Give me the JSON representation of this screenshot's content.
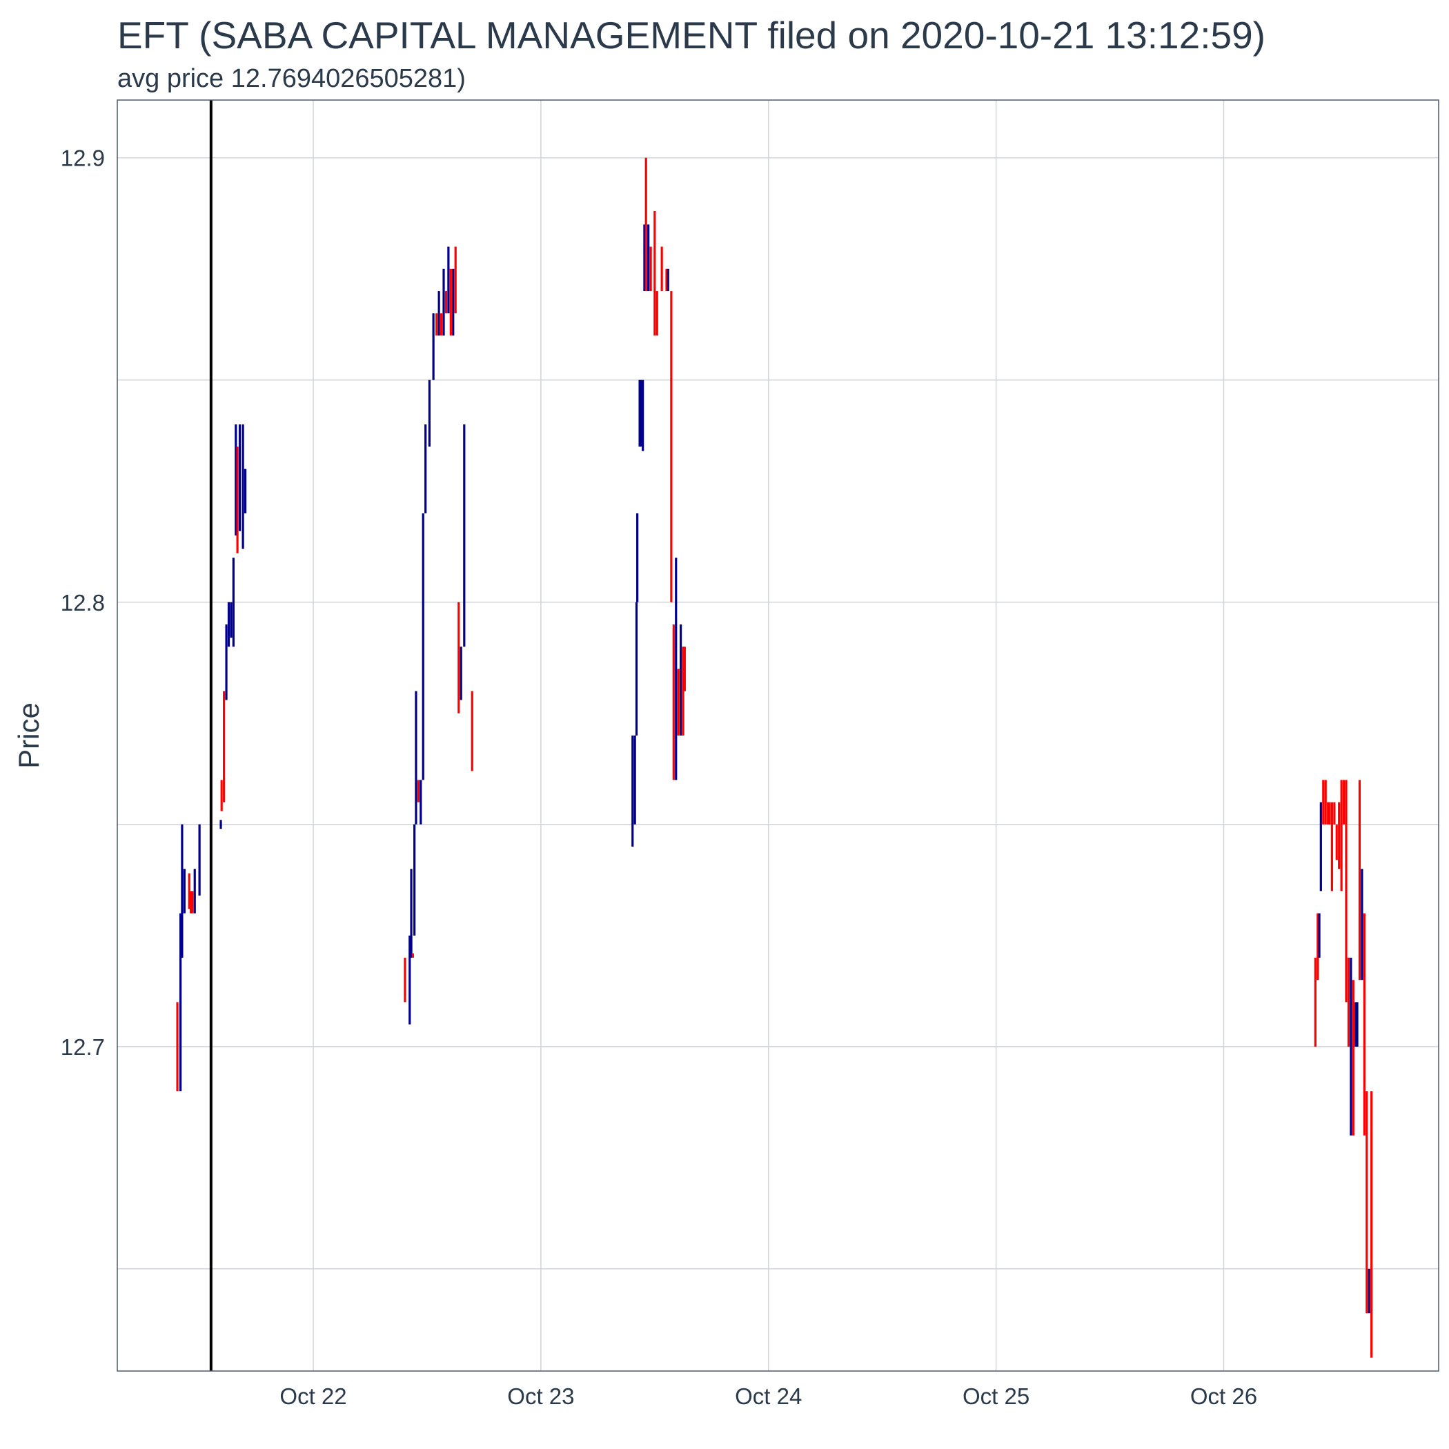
{
  "chart_data": {
    "type": "ohlc",
    "title": "EFT (SABA CAPITAL MANAGEMENT filed on 2020-10-21 13:12:59)",
    "subtitle": "avg price 12.7694026505281)",
    "xlabel": "",
    "ylabel": "Price",
    "x_ticks": [
      {
        "label": "Oct 22",
        "value": "2020-10-22"
      },
      {
        "label": "Oct 23",
        "value": "2020-10-23"
      },
      {
        "label": "Oct 24",
        "value": "2020-10-24"
      },
      {
        "label": "Oct 25",
        "value": "2020-10-25"
      },
      {
        "label": "Oct 26",
        "value": "2020-10-26"
      }
    ],
    "xlim": [
      "2020-10-21 03:20",
      "2020-10-26 22:40"
    ],
    "y_ticks": [
      12.7,
      12.8,
      12.9
    ],
    "y_minor_ticks": [
      12.65,
      12.75,
      12.85
    ],
    "ylim": [
      12.627,
      12.913
    ],
    "grid": true,
    "up_color": "#00008b",
    "down_color": "#ff0000",
    "marker": {
      "time": "2020-10-21 13:12:59",
      "color": "#000000"
    },
    "bars": [
      {
        "t": "2020-10-21 09:40",
        "low": 12.69,
        "high": 12.71,
        "dir": "down"
      },
      {
        "t": "2020-10-21 10:00",
        "low": 12.69,
        "high": 12.73,
        "dir": "up"
      },
      {
        "t": "2020-10-21 10:10",
        "low": 12.72,
        "high": 12.75,
        "dir": "up"
      },
      {
        "t": "2020-10-21 10:25",
        "low": 12.73,
        "high": 12.74,
        "dir": "up"
      },
      {
        "t": "2020-10-21 10:55",
        "low": 12.731,
        "high": 12.739,
        "dir": "down"
      },
      {
        "t": "2020-10-21 11:05",
        "low": 12.73,
        "high": 12.735,
        "dir": "down"
      },
      {
        "t": "2020-10-21 11:15",
        "low": 12.73,
        "high": 12.735,
        "dir": "down"
      },
      {
        "t": "2020-10-21 11:30",
        "low": 12.73,
        "high": 12.74,
        "dir": "up"
      },
      {
        "t": "2020-10-21 12:00",
        "low": 12.734,
        "high": 12.75,
        "dir": "up"
      },
      {
        "t": "2020-10-21 14:15",
        "low": 12.749,
        "high": 12.751,
        "dir": "up"
      },
      {
        "t": "2020-10-21 14:20",
        "low": 12.753,
        "high": 12.76,
        "dir": "down"
      },
      {
        "t": "2020-10-21 14:35",
        "low": 12.755,
        "high": 12.78,
        "dir": "down"
      },
      {
        "t": "2020-10-21 14:50",
        "low": 12.778,
        "high": 12.795,
        "dir": "up"
      },
      {
        "t": "2020-10-21 15:05",
        "low": 12.79,
        "high": 12.8,
        "dir": "up"
      },
      {
        "t": "2020-10-21 15:20",
        "low": 12.792,
        "high": 12.8,
        "dir": "up"
      },
      {
        "t": "2020-10-21 15:35",
        "low": 12.79,
        "high": 12.81,
        "dir": "up"
      },
      {
        "t": "2020-10-21 15:50",
        "low": 12.815,
        "high": 12.84,
        "dir": "up"
      },
      {
        "t": "2020-10-21 16:00",
        "low": 12.811,
        "high": 12.835,
        "dir": "down"
      },
      {
        "t": "2020-10-21 16:15",
        "low": 12.816,
        "high": 12.84,
        "dir": "up"
      },
      {
        "t": "2020-10-21 16:35",
        "low": 12.812,
        "high": 12.84,
        "dir": "up"
      },
      {
        "t": "2020-10-21 16:50",
        "low": 12.82,
        "high": 12.83,
        "dir": "up"
      },
      {
        "t": "2020-10-22 09:40",
        "low": 12.71,
        "high": 12.72,
        "dir": "down"
      },
      {
        "t": "2020-10-22 10:10",
        "low": 12.705,
        "high": 12.725,
        "dir": "up"
      },
      {
        "t": "2020-10-22 10:20",
        "low": 12.72,
        "high": 12.74,
        "dir": "up"
      },
      {
        "t": "2020-10-22 10:30",
        "low": 12.72,
        "high": 12.721,
        "dir": "down"
      },
      {
        "t": "2020-10-22 10:40",
        "low": 12.725,
        "high": 12.75,
        "dir": "up"
      },
      {
        "t": "2020-10-22 10:50",
        "low": 12.75,
        "high": 12.78,
        "dir": "up"
      },
      {
        "t": "2020-10-22 11:05",
        "low": 12.755,
        "high": 12.76,
        "dir": "down"
      },
      {
        "t": "2020-10-22 11:20",
        "low": 12.75,
        "high": 12.76,
        "dir": "up"
      },
      {
        "t": "2020-10-22 11:35",
        "low": 12.76,
        "high": 12.82,
        "dir": "up"
      },
      {
        "t": "2020-10-22 11:50",
        "low": 12.82,
        "high": 12.84,
        "dir": "up"
      },
      {
        "t": "2020-10-22 12:15",
        "low": 12.835,
        "high": 12.85,
        "dir": "up"
      },
      {
        "t": "2020-10-22 12:40",
        "low": 12.85,
        "high": 12.865,
        "dir": "up"
      },
      {
        "t": "2020-10-22 13:00",
        "low": 12.86,
        "high": 12.865,
        "dir": "down"
      },
      {
        "t": "2020-10-22 13:15",
        "low": 12.86,
        "high": 12.87,
        "dir": "up"
      },
      {
        "t": "2020-10-22 13:30",
        "low": 12.86,
        "high": 12.865,
        "dir": "down"
      },
      {
        "t": "2020-10-22 13:45",
        "low": 12.86,
        "high": 12.875,
        "dir": "up"
      },
      {
        "t": "2020-10-22 14:00",
        "low": 12.865,
        "high": 12.87,
        "dir": "down"
      },
      {
        "t": "2020-10-22 14:15",
        "low": 12.865,
        "high": 12.88,
        "dir": "up"
      },
      {
        "t": "2020-10-22 14:30",
        "low": 12.86,
        "high": 12.875,
        "dir": "down"
      },
      {
        "t": "2020-10-22 14:45",
        "low": 12.86,
        "high": 12.875,
        "dir": "up"
      },
      {
        "t": "2020-10-22 15:00",
        "low": 12.865,
        "high": 12.88,
        "dir": "down"
      },
      {
        "t": "2020-10-22 15:20",
        "low": 12.775,
        "high": 12.8,
        "dir": "down"
      },
      {
        "t": "2020-10-22 15:35",
        "low": 12.778,
        "high": 12.79,
        "dir": "up"
      },
      {
        "t": "2020-10-22 15:55",
        "low": 12.79,
        "high": 12.84,
        "dir": "up"
      },
      {
        "t": "2020-10-22 16:45",
        "low": 12.762,
        "high": 12.78,
        "dir": "down"
      },
      {
        "t": "2020-10-23 09:40",
        "low": 12.745,
        "high": 12.77,
        "dir": "up"
      },
      {
        "t": "2020-10-23 09:55",
        "low": 12.75,
        "high": 12.77,
        "dir": "up"
      },
      {
        "t": "2020-10-23 10:05",
        "low": 12.77,
        "high": 12.8,
        "dir": "up"
      },
      {
        "t": "2020-10-23 10:10",
        "low": 12.8,
        "high": 12.82,
        "dir": "up"
      },
      {
        "t": "2020-10-23 10:25",
        "low": 12.835,
        "high": 12.85,
        "dir": "up"
      },
      {
        "t": "2020-10-23 10:35",
        "low": 12.835,
        "high": 12.85,
        "dir": "up"
      },
      {
        "t": "2020-10-23 10:45",
        "low": 12.834,
        "high": 12.85,
        "dir": "up"
      },
      {
        "t": "2020-10-23 10:55",
        "low": 12.87,
        "high": 12.885,
        "dir": "up"
      },
      {
        "t": "2020-10-23 11:05",
        "low": 12.87,
        "high": 12.9,
        "dir": "down"
      },
      {
        "t": "2020-10-23 11:20",
        "low": 12.87,
        "high": 12.885,
        "dir": "up"
      },
      {
        "t": "2020-10-23 11:35",
        "low": 12.87,
        "high": 12.88,
        "dir": "down"
      },
      {
        "t": "2020-10-23 12:00",
        "low": 12.86,
        "high": 12.888,
        "dir": "down"
      },
      {
        "t": "2020-10-23 12:15",
        "low": 12.86,
        "high": 12.87,
        "dir": "down"
      },
      {
        "t": "2020-10-23 12:45",
        "low": 12.87,
        "high": 12.88,
        "dir": "down"
      },
      {
        "t": "2020-10-23 13:15",
        "low": 12.87,
        "high": 12.875,
        "dir": "down"
      },
      {
        "t": "2020-10-23 13:25",
        "low": 12.87,
        "high": 12.875,
        "dir": "up"
      },
      {
        "t": "2020-10-23 13:45",
        "low": 12.8,
        "high": 12.87,
        "dir": "down"
      },
      {
        "t": "2020-10-23 14:00",
        "low": 12.76,
        "high": 12.795,
        "dir": "down"
      },
      {
        "t": "2020-10-23 14:15",
        "low": 12.76,
        "high": 12.81,
        "dir": "up"
      },
      {
        "t": "2020-10-23 14:30",
        "low": 12.77,
        "high": 12.785,
        "dir": "down"
      },
      {
        "t": "2020-10-23 14:45",
        "low": 12.77,
        "high": 12.795,
        "dir": "up"
      },
      {
        "t": "2020-10-23 15:00",
        "low": 12.77,
        "high": 12.79,
        "dir": "down"
      },
      {
        "t": "2020-10-23 15:10",
        "low": 12.78,
        "high": 12.79,
        "dir": "down"
      },
      {
        "t": "2020-10-26 09:40",
        "low": 12.7,
        "high": 12.72,
        "dir": "down"
      },
      {
        "t": "2020-10-26 09:55",
        "low": 12.715,
        "high": 12.73,
        "dir": "down"
      },
      {
        "t": "2020-10-26 10:05",
        "low": 12.72,
        "high": 12.73,
        "dir": "up"
      },
      {
        "t": "2020-10-26 10:15",
        "low": 12.735,
        "high": 12.755,
        "dir": "up"
      },
      {
        "t": "2020-10-26 10:30",
        "low": 12.75,
        "high": 12.76,
        "dir": "down"
      },
      {
        "t": "2020-10-26 10:45",
        "low": 12.75,
        "high": 12.76,
        "dir": "down"
      },
      {
        "t": "2020-10-26 11:00",
        "low": 12.75,
        "high": 12.755,
        "dir": "down"
      },
      {
        "t": "2020-10-26 11:10",
        "low": 12.75,
        "high": 12.755,
        "dir": "down"
      },
      {
        "t": "2020-10-26 11:25",
        "low": 12.735,
        "high": 12.755,
        "dir": "down"
      },
      {
        "t": "2020-10-26 11:40",
        "low": 12.75,
        "high": 12.755,
        "dir": "down"
      },
      {
        "t": "2020-10-26 11:55",
        "low": 12.742,
        "high": 12.75,
        "dir": "down"
      },
      {
        "t": "2020-10-26 12:10",
        "low": 12.74,
        "high": 12.755,
        "dir": "down"
      },
      {
        "t": "2020-10-26 12:25",
        "low": 12.735,
        "high": 12.76,
        "dir": "down"
      },
      {
        "t": "2020-10-26 12:40",
        "low": 12.75,
        "high": 12.76,
        "dir": "down"
      },
      {
        "t": "2020-10-26 12:55",
        "low": 12.71,
        "high": 12.76,
        "dir": "down"
      },
      {
        "t": "2020-10-26 13:10",
        "low": 12.7,
        "high": 12.72,
        "dir": "down"
      },
      {
        "t": "2020-10-26 13:25",
        "low": 12.68,
        "high": 12.72,
        "dir": "up"
      },
      {
        "t": "2020-10-26 13:40",
        "low": 12.68,
        "high": 12.715,
        "dir": "down"
      },
      {
        "t": "2020-10-26 13:55",
        "low": 12.7,
        "high": 12.71,
        "dir": "up"
      },
      {
        "t": "2020-10-26 14:05",
        "low": 12.7,
        "high": 12.71,
        "dir": "up"
      },
      {
        "t": "2020-10-26 14:20",
        "low": 12.715,
        "high": 12.76,
        "dir": "down"
      },
      {
        "t": "2020-10-26 14:35",
        "low": 12.715,
        "high": 12.74,
        "dir": "up"
      },
      {
        "t": "2020-10-26 14:50",
        "low": 12.68,
        "high": 12.73,
        "dir": "down"
      },
      {
        "t": "2020-10-26 15:05",
        "low": 12.64,
        "high": 12.69,
        "dir": "down"
      },
      {
        "t": "2020-10-26 15:20",
        "low": 12.64,
        "high": 12.65,
        "dir": "up"
      },
      {
        "t": "2020-10-26 15:35",
        "low": 12.63,
        "high": 12.69,
        "dir": "down"
      }
    ]
  }
}
